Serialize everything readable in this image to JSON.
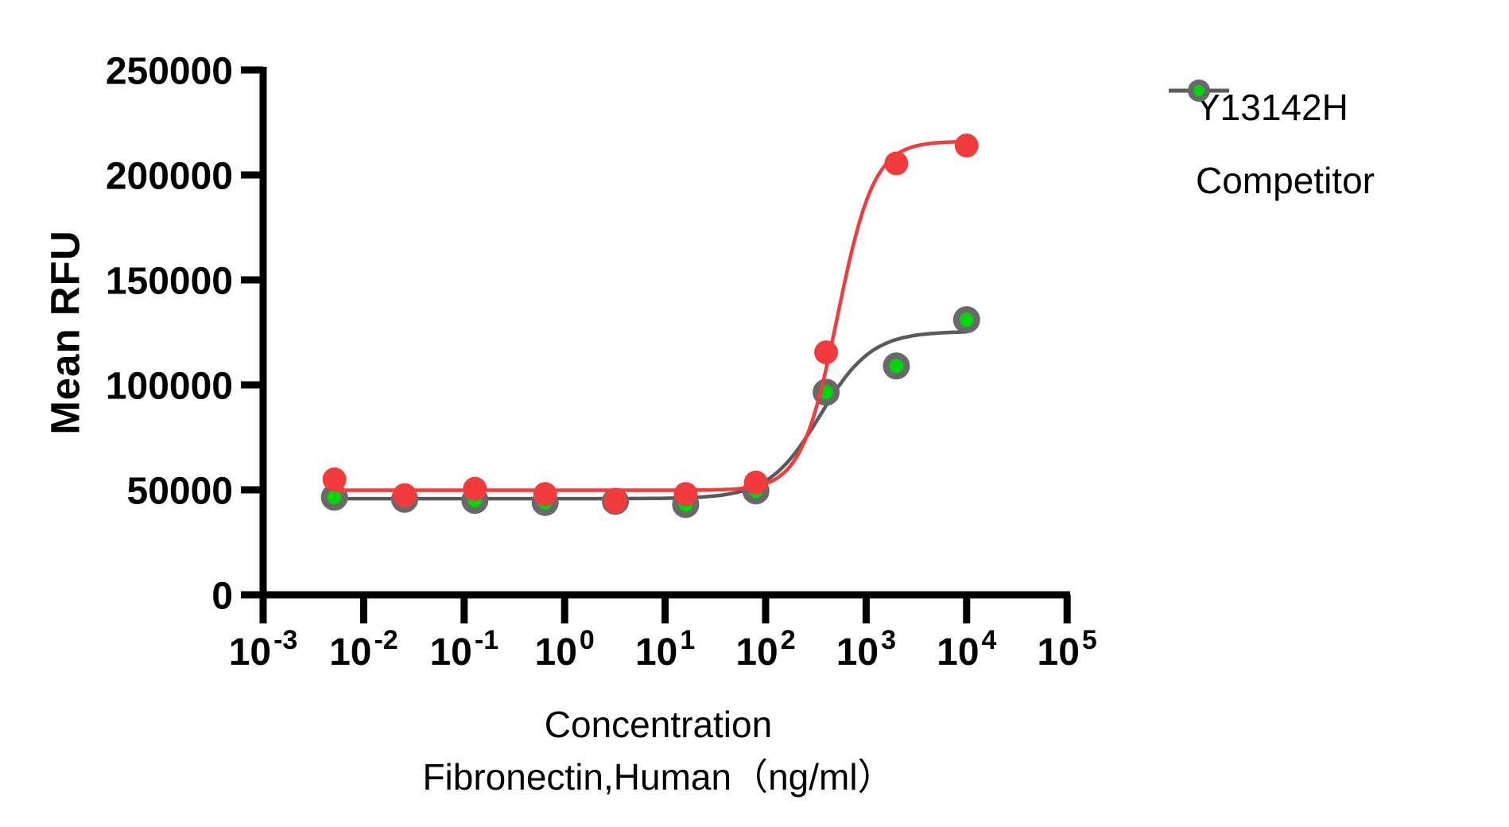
{
  "chart_data": {
    "type": "scatter-line",
    "title": "",
    "ylabel": "Mean RFU",
    "xlabel_line1": "Concentration",
    "xlabel_line2": "Fibronectin,Human（ng/ml）",
    "x_scale": "log10",
    "x_tick_base": "10",
    "x_tick_exponents": [
      -3,
      -2,
      -1,
      0,
      1,
      2,
      3,
      4,
      5
    ],
    "xlim_log": [
      -3,
      5
    ],
    "y_ticks": [
      0,
      50000,
      100000,
      150000,
      200000,
      250000
    ],
    "y_tick_labels": [
      "0",
      "50000",
      "100000",
      "150000",
      "200000",
      "250000"
    ],
    "ylim": [
      0,
      250000
    ],
    "grid": false,
    "legend_position": "top-right",
    "x_values_ng_ml": [
      0.00512,
      0.0256,
      0.128,
      0.64,
      3.2,
      16,
      80,
      400,
      2000,
      10000
    ],
    "series": [
      {
        "name": "Y13142H",
        "marker": "filled-circle",
        "marker_color": "#f23b3d",
        "line_color": "#f23b3d",
        "values": [
          55000,
          47500,
          50500,
          48000,
          44500,
          48000,
          53500,
          115500,
          205500,
          214000
        ],
        "fit": {
          "model": "4PL",
          "bottom": 49800,
          "top": 216000,
          "ec50": 520,
          "hill": 2.4
        }
      },
      {
        "name": "Competitor",
        "marker": "ring-circle",
        "marker_color": "#00d40c",
        "marker_ring_color": "#696969",
        "line_color": "#5a5a5a",
        "values": [
          46500,
          45500,
          45000,
          44000,
          44500,
          43000,
          49500,
          96500,
          109000,
          131000
        ],
        "fit": {
          "model": "4PL",
          "bottom": 45800,
          "top": 125500,
          "ec50": 350,
          "hill": 1.7
        }
      }
    ],
    "axis_color": "#000000",
    "background_color": "#ffffff"
  }
}
